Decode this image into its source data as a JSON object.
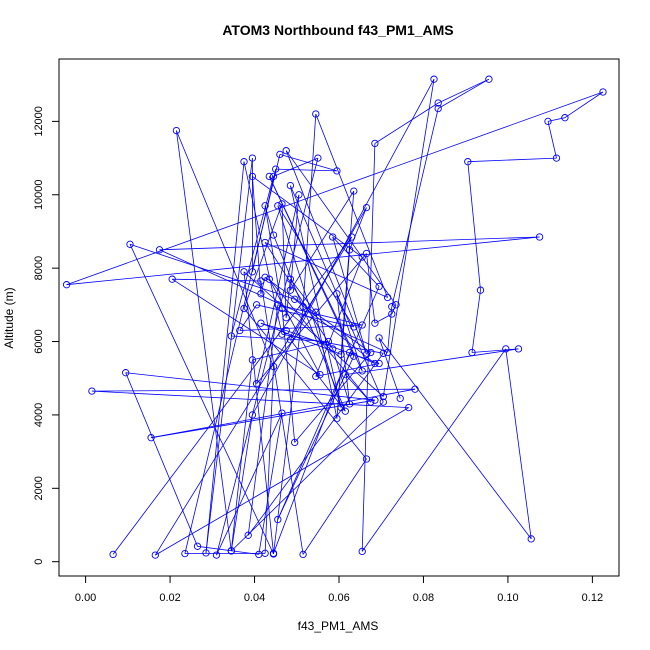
{
  "chart_data": {
    "type": "line",
    "title": "ATOM3 Northbound f43_PM1_AMS",
    "xlabel": "f43_PM1_AMS",
    "ylabel": "Altitude (m)",
    "xlim": [
      -0.0063,
      0.1263
    ],
    "ylim": [
      -390,
      13700
    ],
    "x_ticks": [
      0.0,
      0.02,
      0.04,
      0.06,
      0.08,
      0.1,
      0.12
    ],
    "x_tick_labels": [
      "0.00",
      "0.02",
      "0.04",
      "0.06",
      "0.08",
      "0.10",
      "0.12"
    ],
    "y_ticks": [
      0,
      2000,
      4000,
      6000,
      8000,
      10000,
      12000
    ],
    "y_tick_labels": [
      "0",
      "2000",
      "4000",
      "6000",
      "8000",
      "10000",
      "12000"
    ],
    "grid": false,
    "legend": "none",
    "color": "#0000ff",
    "series": [
      {
        "marker": "open-circle",
        "line": true,
        "x": [
          0.0065,
          0.063,
          0.0165,
          0.0765,
          0.0015,
          0.078,
          0.0155,
          0.0685,
          0.0095,
          0.0265,
          0.041,
          0.0465,
          0.031,
          0.055,
          0.0445,
          0.0345,
          0.0575,
          0.0395,
          0.0345,
          0.0215,
          0.0445,
          0.0425,
          0.0235,
          0.046,
          0.0595,
          0.045,
          0.0395,
          0.0395,
          0.0285,
          0.0375,
          0.0465,
          0.0705,
          0.0385,
          0.0455,
          0.0655,
          0.0365,
          0.0405,
          0.0635,
          0.0455,
          0.0605,
          0.0485,
          0.0705,
          0.0345,
          0.0395,
          0.0825,
          0.0705,
          0.0375,
          0.0445,
          0.0625,
          0.0685,
          0.0495,
          0.0105,
          0.0445,
          0.0515,
          0.0545,
          0.0715,
          0.0425,
          0.0585,
          0.0625,
          0.0595,
          0.0655,
          0.0435,
          0.0635,
          0.0455,
          0.0695,
          0.0585,
          0.0665,
          0.0475,
          0.0735,
          0.0725,
          0.0685,
          0.0665,
          0.0405,
          0.0505,
          0.0485,
          0.0635,
          0.0605,
          0.0415,
          0.0475,
          0.0695,
          0.0545,
          0.0655,
          0.0395,
          0.0415,
          0.0425,
          0.0675,
          0.0495,
          0.0465,
          0.0425,
          0.0445,
          0.0615,
          0.0485,
          0.0665,
          0.0625,
          0.0595,
          0.0545,
          0.0485,
          0.0475,
          0.0465,
          0.0375,
          0.0665,
          0.0515,
          0.0415,
          0.0205,
          0.0555,
          0.0435,
          0.0675,
          0.0615,
          0.1025,
          0.0915,
          0.0935,
          0.0905,
          0.1115,
          0.1095,
          0.1135,
          0.1225,
          -0.0045,
          0.1075,
          0.0175,
          0.0715,
          0.0725,
          0.0835,
          0.0955,
          0.0835,
          0.0685,
          0.0655,
          0.0995,
          0.1055,
          0.0695,
          0.0745
        ],
        "y": [
          200,
          8850,
          180,
          4200,
          4650,
          4700,
          3380,
          4400,
          5150,
          420,
          200,
          4050,
          180,
          11000,
          10500,
          6150,
          6000,
          5500,
          300,
          11750,
          5320,
          230,
          220,
          11100,
          10650,
          10700,
          7900,
          11000,
          240,
          10900,
          6200,
          5680,
          720,
          7000,
          6450,
          6300,
          7000,
          6400,
          9700,
          4200,
          10250,
          4350,
          290,
          4000,
          13150,
          4500,
          7900,
          230,
          5700,
          5400,
          7150,
          8650,
          210,
          6950,
          12200,
          7200,
          8700,
          5800,
          4300,
          7300,
          5200,
          10500,
          5600,
          1150,
          7500,
          8850,
          5650,
          11200,
          7000,
          6750,
          6500,
          8400,
          4850,
          10000,
          7400,
          10100,
          5650,
          6500,
          6300,
          5400,
          5050,
          8300,
          10500,
          7300,
          7750,
          5700,
          3250,
          6900,
          9700,
          8900,
          4100,
          6050,
          9650,
          8500,
          3900,
          6800,
          7700,
          6650,
          9750,
          6900,
          2800,
          200,
          7650,
          7700,
          5100,
          7700,
          4350,
          5100,
          5800,
          5700,
          7400,
          10900,
          11000,
          12000,
          12100,
          12800,
          7550,
          8850,
          8500,
          5700,
          6950,
          12350,
          13150,
          12500,
          11400,
          280,
          5800,
          620,
          6100,
          4450
        ]
      }
    ]
  }
}
